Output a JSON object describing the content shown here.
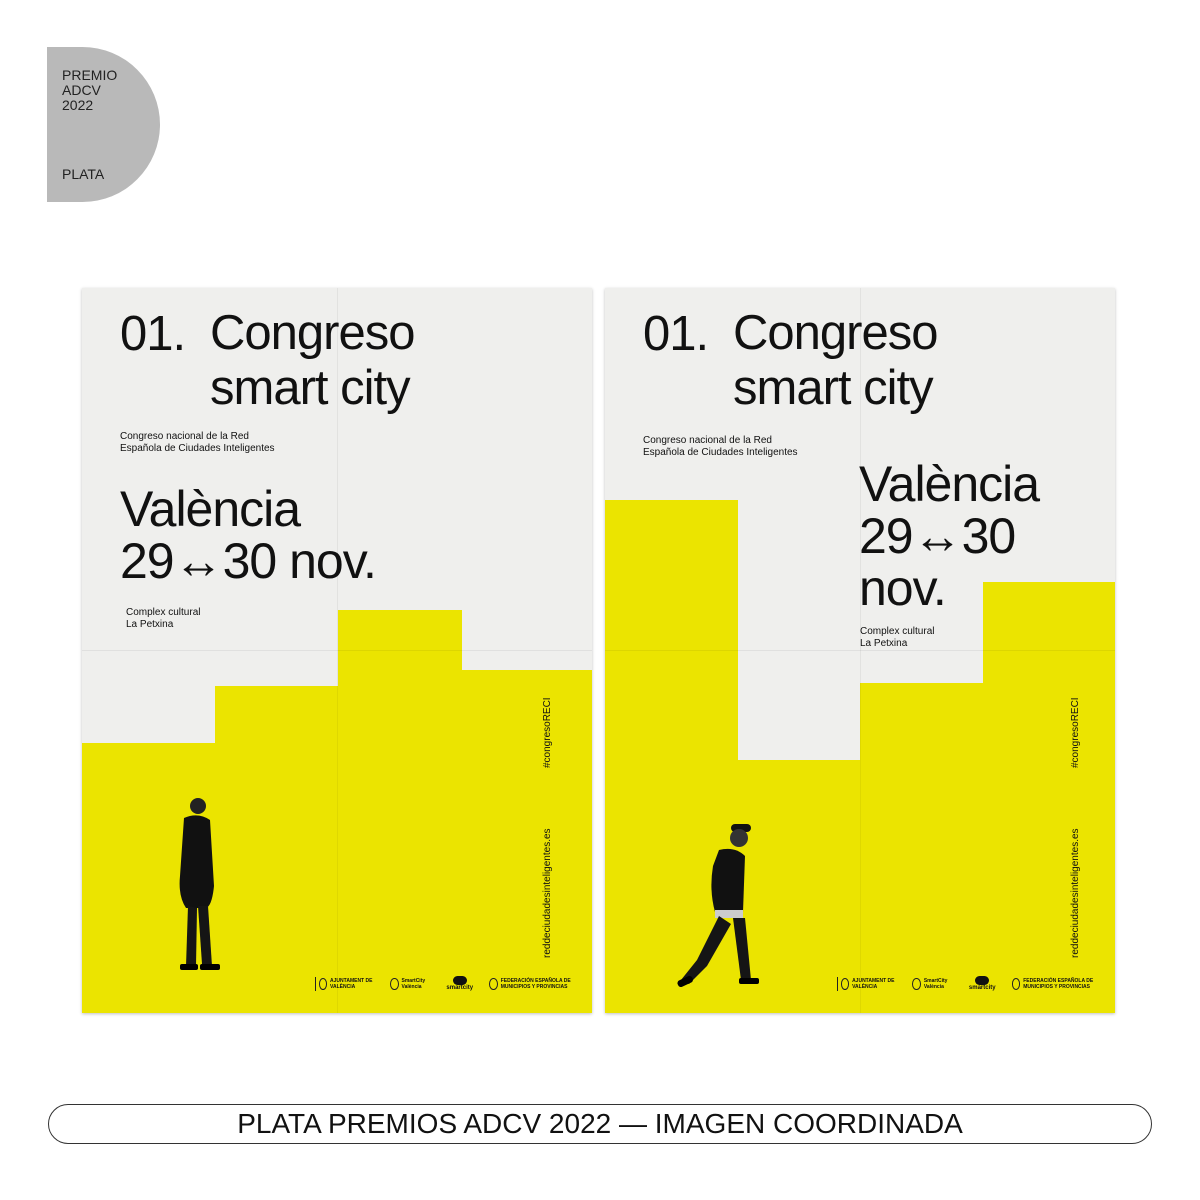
{
  "badge": {
    "line1": "PREMIO",
    "line2": "ADCV",
    "line3": "2022",
    "level": "PLATA"
  },
  "poster": {
    "number": "01.",
    "title_line1": "Congreso",
    "title_line2": "smart city",
    "subtitle_line1": "Congreso nacional de la Red",
    "subtitle_line2": "Española de Ciudades Inteligentes",
    "city": "València",
    "dates": "29↔30 nov.",
    "dates_short": "29↔30",
    "month": "nov.",
    "venue_line1": "Complex cultural",
    "venue_line2": "La Petxina",
    "hashtag": "#congresoRECI",
    "website": "reddeciudadesinteligentes.es",
    "logos": [
      "AJUNTAMENT DE VALÈNCIA",
      "SmartCity València",
      "smartcity",
      "FEDERACIÓN ESPAÑOLA DE MUNICIPIOS Y PROVINCIAS"
    ]
  },
  "colors": {
    "accent": "#ebe400",
    "paper": "#efefed",
    "badge": "#b9b9b9"
  },
  "caption": "PLATA PREMIOS ADCV 2022 — IMAGEN COORDINADA"
}
